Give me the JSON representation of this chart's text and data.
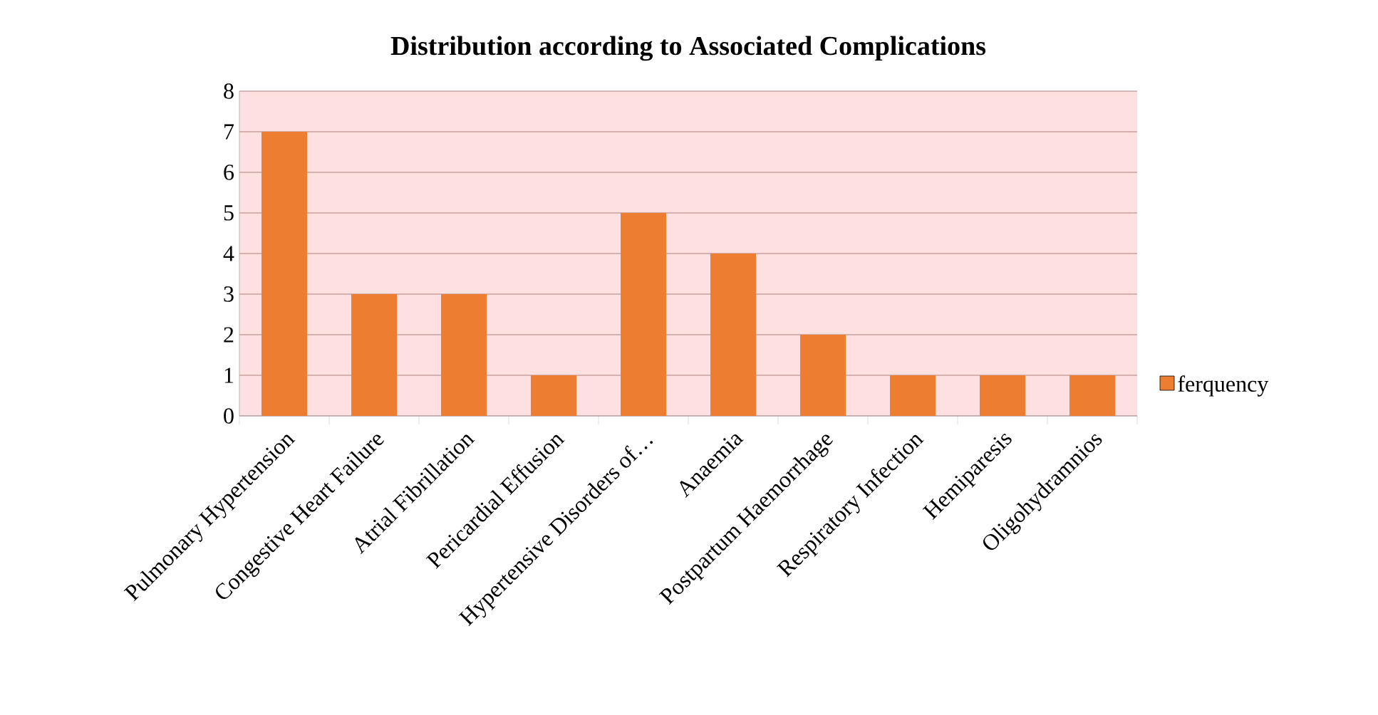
{
  "chart_data": {
    "type": "bar",
    "title": "Distribution according to Associated Complications",
    "categories": [
      "Pulmonary Hypertension",
      "Congestive Heart Failure",
      "Atrial Fibrillation",
      "Pericardial Effusion",
      "Hypertensive Disorders of…",
      "Anaemia",
      "Postpartum Haemorrhage",
      "Respiratory Infection",
      "Hemiparesis",
      "Oligohydramnios"
    ],
    "series": [
      {
        "name": "ferquency",
        "color": "#ed7d31",
        "values": [
          7,
          3,
          3,
          1,
          5,
          4,
          2,
          1,
          1,
          1
        ]
      }
    ],
    "ylim": [
      0,
      8
    ],
    "yticks": [
      0,
      1,
      2,
      3,
      4,
      5,
      6,
      7,
      8
    ],
    "grid": "y",
    "legend": "right"
  }
}
